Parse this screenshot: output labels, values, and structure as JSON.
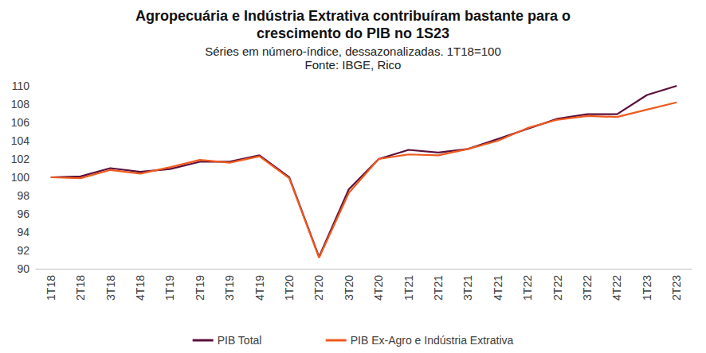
{
  "chart_data": {
    "type": "line",
    "title": "Agropecuária e Indústria Extrativa contribuíram bastante para o\ncrescimento do PIB no 1S23",
    "subtitle": "Séries em número-índice, dessazonalizadas. 1T18=100\nFonte: IBGE, Rico",
    "categories": [
      "1T18",
      "2T18",
      "3T18",
      "4T18",
      "1T19",
      "2T19",
      "3T19",
      "4T19",
      "1T20",
      "2T20",
      "3T20",
      "4T20",
      "1T21",
      "2T21",
      "3T21",
      "4T21",
      "1T22",
      "2T22",
      "3T22",
      "4T22",
      "1T23",
      "2T23"
    ],
    "series": [
      {
        "name": "PIB Total",
        "color": "#5a0f3c",
        "values": [
          100,
          100.1,
          101.0,
          100.6,
          100.9,
          101.7,
          101.7,
          102.4,
          100.0,
          91.3,
          98.7,
          102.0,
          103.0,
          102.7,
          103.1,
          104.2,
          105.3,
          106.4,
          106.9,
          106.9,
          109.0,
          110.0
        ]
      },
      {
        "name": "PIB Ex-Agro e Indústria Extrativa",
        "color": "#f05a1e",
        "values": [
          100,
          99.9,
          100.8,
          100.4,
          101.1,
          101.9,
          101.6,
          102.3,
          99.9,
          91.2,
          98.3,
          102.0,
          102.5,
          102.4,
          103.1,
          104.0,
          105.4,
          106.3,
          106.7,
          106.6,
          107.4,
          108.2
        ]
      }
    ],
    "ylim": [
      90,
      110
    ],
    "yticks": [
      90,
      92,
      94,
      96,
      98,
      100,
      102,
      104,
      106,
      108,
      110
    ],
    "grid": false,
    "legend": "bottom"
  }
}
